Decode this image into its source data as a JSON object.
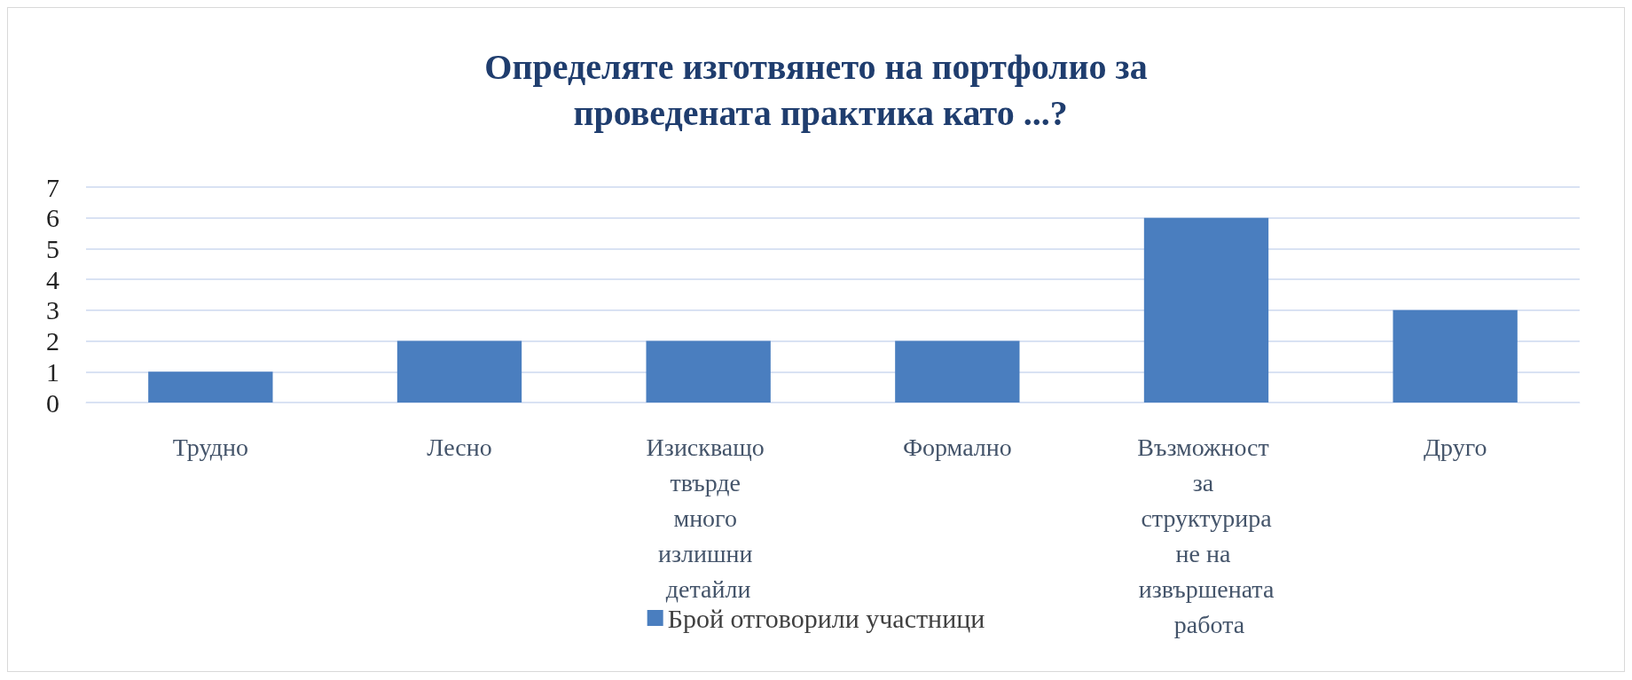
{
  "chart_data": {
    "type": "bar",
    "title": "Определяте изготвянето на портфолио за проведената практика като ...?",
    "categories": [
      "Трудно",
      "Лесно",
      "Изискващо твърде много излишни детайли",
      "Формално",
      "Възможност за структуриране на извършената работа",
      "Друго"
    ],
    "series": [
      {
        "name": "Брой отговорили участници",
        "color": "#4a7ebf",
        "values": [
          1,
          2,
          2,
          2,
          6,
          3
        ]
      }
    ],
    "ylim": [
      0,
      7
    ],
    "yticks": [
      0,
      1,
      2,
      3,
      4,
      5,
      6,
      7
    ],
    "grid": "y",
    "legend": "bottom"
  }
}
